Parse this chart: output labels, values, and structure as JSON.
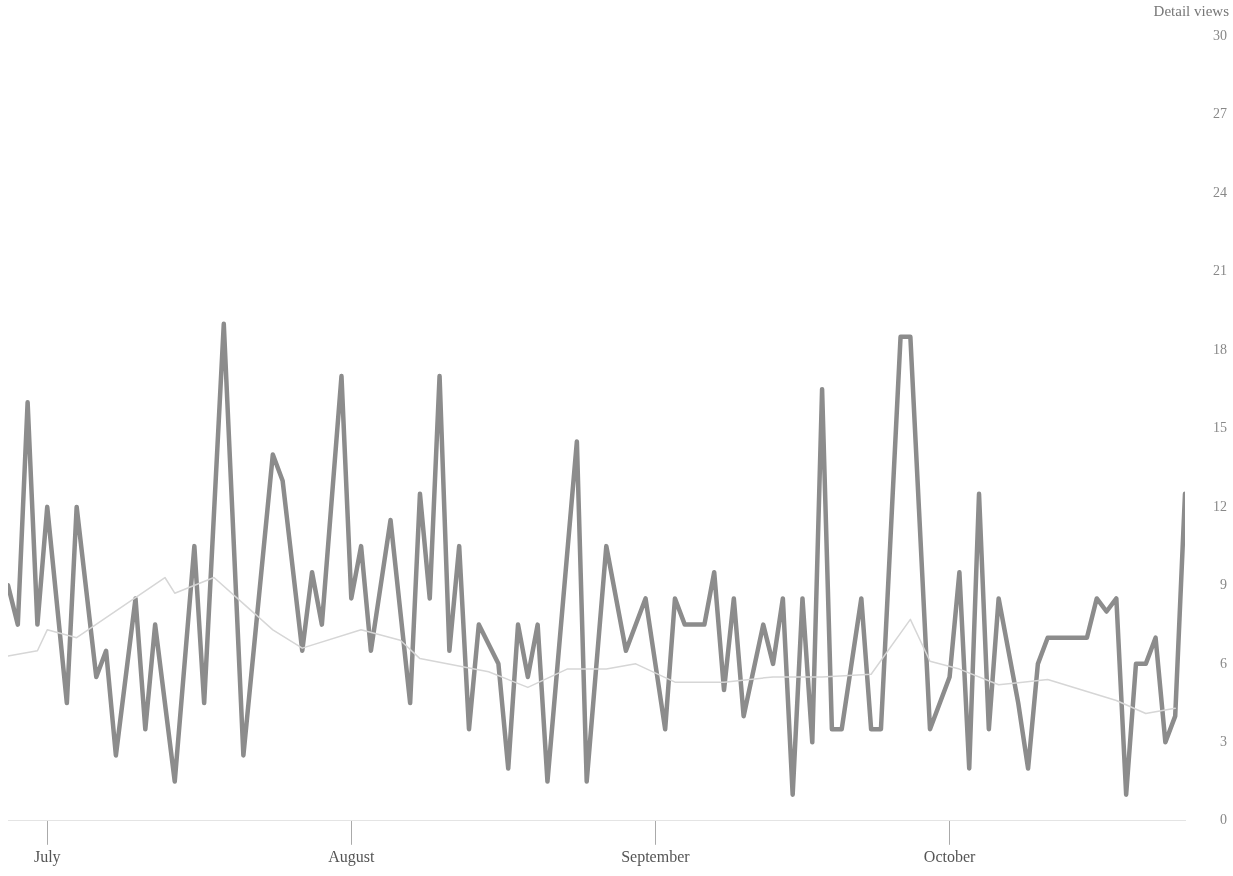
{
  "chart_data": {
    "type": "line",
    "ylabel": "Detail views",
    "xlim": [
      "--06-27",
      "--10-25"
    ],
    "xticks": [
      {
        "value": "--07-01",
        "label": "July"
      },
      {
        "value": "--08-01",
        "label": "August"
      },
      {
        "value": "--09-01",
        "label": "September"
      },
      {
        "value": "--10-01",
        "label": "October"
      }
    ],
    "ylim": [
      0,
      30
    ],
    "yticks": [
      0,
      3,
      6,
      9,
      12,
      15,
      18,
      21,
      24,
      27,
      30
    ],
    "grid": false,
    "legend": false,
    "marker": "none",
    "line_style": "solid",
    "series": [
      {
        "color": "#d6d6d6",
        "x": [
          "--06-27",
          "--06-30",
          "--07-01",
          "--07-04",
          "--07-13",
          "--07-14",
          "--07-18",
          "--07-24",
          "--07-27",
          "--08-02",
          "--08-06",
          "--08-08",
          "--08-15",
          "--08-19",
          "--08-23",
          "--08-27",
          "--08-30",
          "--09-03",
          "--09-08",
          "--09-13",
          "--09-18",
          "--09-23",
          "--09-27",
          "--09-29",
          "--10-02",
          "--10-06",
          "--10-11",
          "--10-18",
          "--10-21",
          "--10-24"
        ],
        "values": [
          6.3,
          6.5,
          7.3,
          7,
          9.3,
          8.7,
          9.3,
          7.3,
          6.6,
          7.3,
          6.9,
          6.2,
          5.7,
          5.1,
          5.8,
          5.8,
          6,
          5.3,
          5.3,
          5.5,
          5.5,
          5.6,
          7.7,
          6.1,
          5.8,
          5.2,
          5.4,
          4.6,
          4.1,
          4.3
        ]
      },
      {
        "color": "#8c8c8c",
        "x": [
          "--06-27",
          "--06-28",
          "--06-29",
          "--06-30",
          "--07-01",
          "--07-03",
          "--07-04",
          "--07-06",
          "--07-07",
          "--07-08",
          "--07-10",
          "--07-11",
          "--07-12",
          "--07-14",
          "--07-16",
          "--07-17",
          "--07-19",
          "--07-21",
          "--07-24",
          "--07-25",
          "--07-27",
          "--07-28",
          "--07-29",
          "--07-31",
          "--08-01",
          "--08-02",
          "--08-03",
          "--08-05",
          "--08-07",
          "--08-08",
          "--08-09",
          "--08-10",
          "--08-11",
          "--08-12",
          "--08-13",
          "--08-14",
          "--08-16",
          "--08-17",
          "--08-18",
          "--08-19",
          "--08-20",
          "--08-21",
          "--08-24",
          "--08-25",
          "--08-27",
          "--08-29",
          "--08-31",
          "--09-02",
          "--09-03",
          "--09-04",
          "--09-06",
          "--09-07",
          "--09-08",
          "--09-09",
          "--09-10",
          "--09-12",
          "--09-13",
          "--09-14",
          "--09-15",
          "--09-16",
          "--09-17",
          "--09-18",
          "--09-19",
          "--09-20",
          "--09-22",
          "--09-23",
          "--09-24",
          "--09-26",
          "--09-27",
          "--09-29",
          "--10-01",
          "--10-02",
          "--10-03",
          "--10-04",
          "--10-05",
          "--10-06",
          "--10-08",
          "--10-09",
          "--10-10",
          "--10-11",
          "--10-15",
          "--10-16",
          "--10-17",
          "--10-18",
          "--10-19",
          "--10-20",
          "--10-21",
          "--10-22",
          "--10-23",
          "--10-24",
          "--10-25"
        ],
        "values": [
          9,
          7.5,
          16,
          7.5,
          12,
          4.5,
          12,
          5.5,
          6.5,
          2.5,
          8.5,
          3.5,
          7.5,
          1.5,
          10.5,
          4.5,
          19,
          2.5,
          14,
          13,
          6.5,
          9.5,
          7.5,
          17,
          8.5,
          10.5,
          6.5,
          11.5,
          4.5,
          12.5,
          8.5,
          17,
          6.5,
          10.5,
          3.5,
          7.5,
          6,
          2,
          7.5,
          5.5,
          7.5,
          1.5,
          14.5,
          1.5,
          10.5,
          6.5,
          8.5,
          3.5,
          8.5,
          7.5,
          7.5,
          9.5,
          5,
          8.5,
          4,
          7.5,
          6,
          8.5,
          1,
          8.5,
          3,
          16.5,
          3.5,
          3.5,
          8.5,
          3.5,
          3.5,
          18.5,
          18.5,
          3.5,
          5.5,
          9.5,
          2,
          12.5,
          3.5,
          8.5,
          4.5,
          2,
          6,
          7,
          7,
          8.5,
          8,
          8.5,
          1,
          6,
          6,
          7,
          3,
          4,
          12.5
        ]
      }
    ]
  }
}
